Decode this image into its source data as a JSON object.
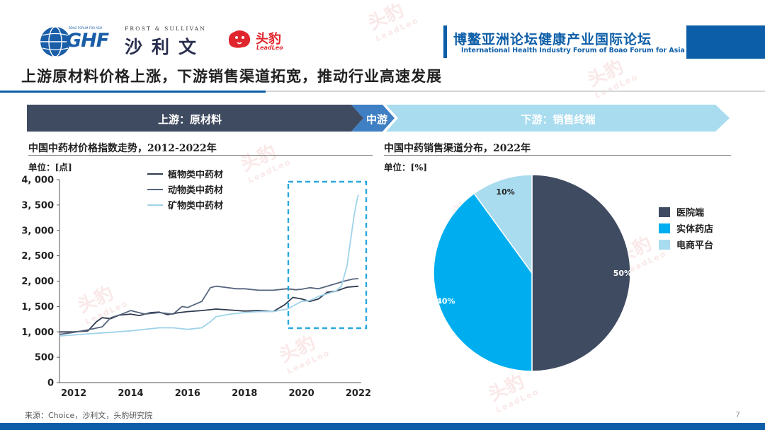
{
  "header": {
    "ghf_logo_text": "GHF",
    "ghf_logo_caption": "BOAO FORUM FOR ASIA",
    "frost_caption": "FROST & SULLIVAN",
    "frost_cn": "沙利文",
    "leadleo_cn": "头豹",
    "leadleo_en": "LeadLeo",
    "forum_title_cn": "博鳌亚洲论坛健康产业国际论坛",
    "forum_title_en": "International Health Industry Forum of Boao Forum for Asia"
  },
  "page_title": "上游原材料价格上涨，下游销售渠道拓宽，推动行业高速发展",
  "chain": {
    "upstream": "上游：原材料",
    "midstream": "中游",
    "downstream": "下游：销售终端"
  },
  "left_panel": {
    "title": "中国中药材价格指数走势，2012-2022年",
    "unit": "单位：[点]"
  },
  "right_panel": {
    "title": "中国中药销售渠道分布，2022年",
    "unit": "单位：[%]"
  },
  "footer": {
    "source": "来源：Choice，沙利文，头豹研究院",
    "page_number": "7"
  },
  "colors": {
    "navy": "#3f4b61",
    "blue": "#0d5ea8",
    "cyan": "#00aeef",
    "light_blue": "#a9dcef",
    "highlight_box": "#29a8dc"
  },
  "chart_data": [
    {
      "type": "line",
      "title": "中国中药材价格指数走势，2012-2022年",
      "ylabel": "单位：[点]",
      "xlim": [
        2011.5,
        2022.1
      ],
      "ylim": [
        0,
        4000
      ],
      "yticks": [
        0,
        500,
        1000,
        1500,
        2000,
        2500,
        3000,
        3500,
        4000
      ],
      "ytick_labels": [
        "0",
        "500",
        "1, 000",
        "1, 500",
        "2, 000",
        "2, 500",
        "3, 000",
        "3, 500",
        "4, 000"
      ],
      "xticks": [
        2012,
        2014,
        2016,
        2018,
        2020,
        2022
      ],
      "xtick_labels": [
        "2012",
        "2014",
        "2016",
        "2018",
        "2020",
        "2022"
      ],
      "legend_position": "top-left",
      "series": [
        {
          "name": "植物类中药材",
          "color": "#2e3a4f",
          "points": [
            [
              2011.5,
              1000
            ],
            [
              2012,
              1000
            ],
            [
              2012.5,
              1020
            ],
            [
              2012.8,
              1200
            ],
            [
              2013,
              1280
            ],
            [
              2013.3,
              1260
            ],
            [
              2013.6,
              1330
            ],
            [
              2014,
              1350
            ],
            [
              2014.3,
              1320
            ],
            [
              2014.7,
              1380
            ],
            [
              2015,
              1390
            ],
            [
              2015.3,
              1340
            ],
            [
              2015.7,
              1380
            ],
            [
              2016,
              1400
            ],
            [
              2016.5,
              1420
            ],
            [
              2017,
              1450
            ],
            [
              2017.5,
              1430
            ],
            [
              2018,
              1410
            ],
            [
              2018.5,
              1420
            ],
            [
              2019,
              1400
            ],
            [
              2019.4,
              1530
            ],
            [
              2019.7,
              1680
            ],
            [
              2020,
              1650
            ],
            [
              2020.3,
              1600
            ],
            [
              2020.6,
              1650
            ],
            [
              2020.9,
              1780
            ],
            [
              2021.2,
              1800
            ],
            [
              2021.6,
              1880
            ],
            [
              2022,
              1900
            ]
          ]
        },
        {
          "name": "动物类中药材",
          "color": "#56657e",
          "points": [
            [
              2011.5,
              950
            ],
            [
              2012,
              990
            ],
            [
              2012.5,
              1040
            ],
            [
              2013,
              1100
            ],
            [
              2013.3,
              1280
            ],
            [
              2013.7,
              1350
            ],
            [
              2014,
              1420
            ],
            [
              2014.5,
              1350
            ],
            [
              2015,
              1380
            ],
            [
              2015.5,
              1350
            ],
            [
              2015.8,
              1500
            ],
            [
              2016,
              1480
            ],
            [
              2016.5,
              1600
            ],
            [
              2016.8,
              1870
            ],
            [
              2017,
              1900
            ],
            [
              2017.3,
              1880
            ],
            [
              2017.7,
              1850
            ],
            [
              2018,
              1850
            ],
            [
              2018.5,
              1820
            ],
            [
              2019,
              1820
            ],
            [
              2019.5,
              1850
            ],
            [
              2019.8,
              1830
            ],
            [
              2020,
              1840
            ],
            [
              2020.3,
              1870
            ],
            [
              2020.6,
              1850
            ],
            [
              2020.9,
              1900
            ],
            [
              2021.2,
              1950
            ],
            [
              2021.5,
              2000
            ],
            [
              2021.8,
              2040
            ],
            [
              2022,
              2050
            ]
          ]
        },
        {
          "name": "矿物类中药材",
          "color": "#9fd3ea",
          "points": [
            [
              2011.5,
              920
            ],
            [
              2012,
              940
            ],
            [
              2012.5,
              960
            ],
            [
              2013,
              980
            ],
            [
              2013.5,
              1000
            ],
            [
              2014,
              1020
            ],
            [
              2014.5,
              1050
            ],
            [
              2015,
              1080
            ],
            [
              2015.5,
              1080
            ],
            [
              2016,
              1050
            ],
            [
              2016.5,
              1080
            ],
            [
              2016.8,
              1200
            ],
            [
              2017,
              1300
            ],
            [
              2017.5,
              1350
            ],
            [
              2018,
              1380
            ],
            [
              2018.5,
              1400
            ],
            [
              2019,
              1400
            ],
            [
              2019.5,
              1450
            ],
            [
              2020,
              1600
            ],
            [
              2020.3,
              1620
            ],
            [
              2020.6,
              1700
            ],
            [
              2020.9,
              1750
            ],
            [
              2021.2,
              1800
            ],
            [
              2021.4,
              1900
            ],
            [
              2021.6,
              2300
            ],
            [
              2021.75,
              2900
            ],
            [
              2021.85,
              3300
            ],
            [
              2021.95,
              3600
            ],
            [
              2022,
              3700
            ]
          ]
        }
      ]
    },
    {
      "type": "pie",
      "title": "中国中药销售渠道分布，2022年",
      "unit": "单位：[%]",
      "legend_position": "right",
      "labels": [
        "医院端",
        "实体药店",
        "电商平台"
      ],
      "values": [
        50,
        40,
        10
      ],
      "value_labels": [
        "50%",
        "40%",
        "10%"
      ],
      "colors": [
        "#3f4b61",
        "#00aeef",
        "#a9dcef"
      ]
    }
  ]
}
